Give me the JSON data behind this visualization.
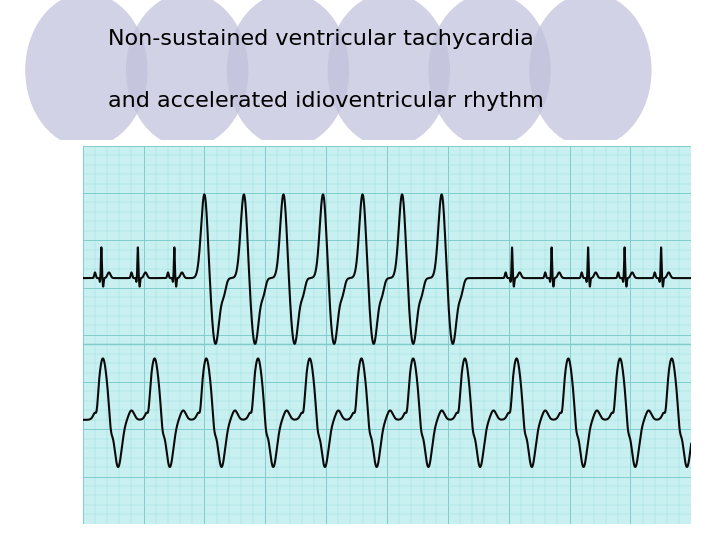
{
  "title_line1": "Non-sustained ventricular tachycardia",
  "title_line2": "and accelerated idioventricular rhythm",
  "title_fontsize": 16,
  "bg_color": "#ffffff",
  "ecg_bg": "#c8f0f0",
  "grid_minor_color": "#a0dede",
  "grid_major_color": "#80cccc",
  "line_color": "#0a0a0a",
  "line_width": 1.5,
  "circle_color": "#c0c0dc",
  "circle_alpha": 0.7
}
